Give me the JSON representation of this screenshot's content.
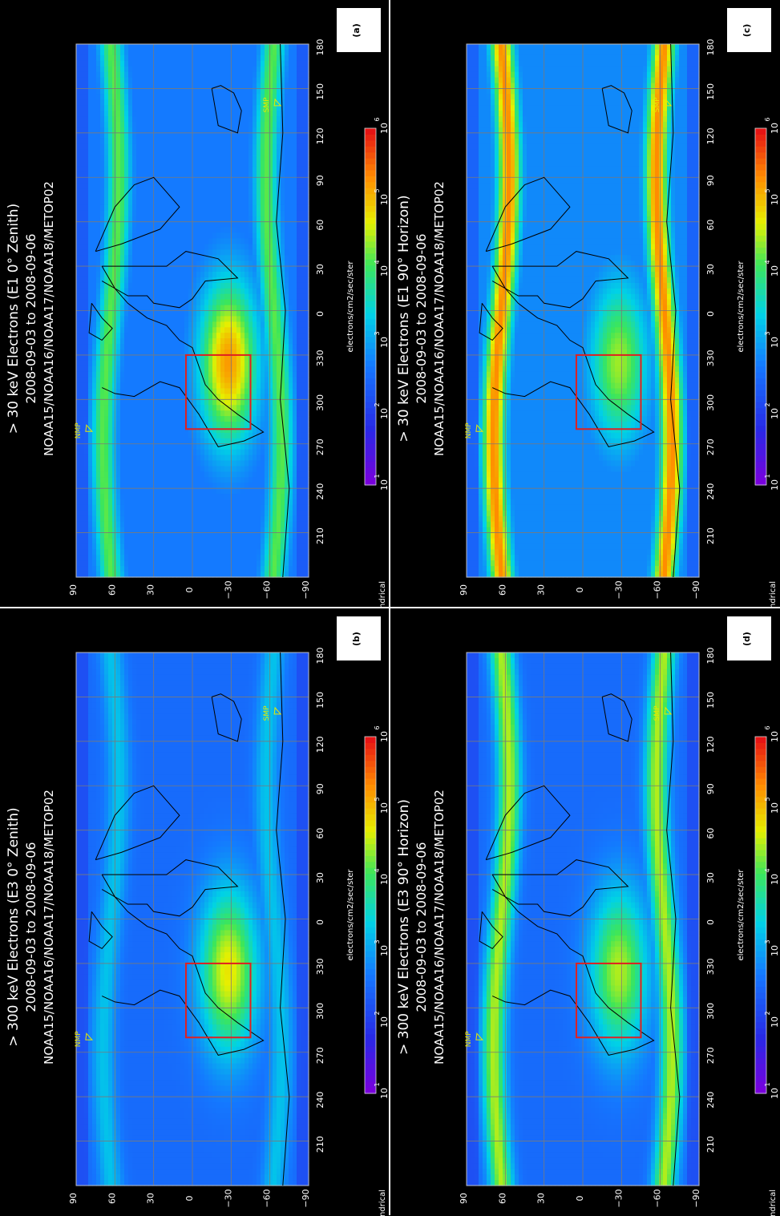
{
  "figure": {
    "colors": {
      "background": "#000000",
      "box": "#e02020",
      "grid": "#7a7a7a",
      "marker": "#e8e800"
    },
    "lat_ticks": [
      "90",
      "60",
      "30",
      "0",
      "−30",
      "−60",
      "−90"
    ],
    "lon_ticks": [
      "210",
      "240",
      "270",
      "300",
      "330",
      "0",
      "30",
      "60",
      "90",
      "120",
      "150",
      "180"
    ],
    "colorbar": {
      "unit": "electrons/cm2/sec/ster",
      "ticks": [
        "10",
        "10",
        "10",
        "10",
        "10",
        "10"
      ],
      "exps": [
        "1",
        "2",
        "3",
        "4",
        "5",
        "6"
      ]
    },
    "projection_label": "cylindrical",
    "markers": {
      "nmp": "NMP",
      "smp": "SMP"
    },
    "panels": [
      {
        "id": "a",
        "label": "(a)",
        "title1": "> 30 keV  Electrons (E1 0° Zenith)",
        "title2": "2008-09-03 to 2008-09-06",
        "title3": "NOAA15/NOAA16/NOAA17/NOAA18/METOP02",
        "intensity": 0.45,
        "belts": 0.55,
        "saa": 0.85
      },
      {
        "id": "c",
        "label": "(c)",
        "title1": "> 30 keV  Electrons (E1 90° Horizon)",
        "title2": "2008-09-03 to 2008-09-06",
        "title3": "NOAA15/NOAA16/NOAA17/NOAA18/METOP02",
        "intensity": 0.55,
        "belts": 0.92,
        "saa": 0.6
      },
      {
        "id": "b",
        "label": "(b)",
        "title1": "> 300 keV  Electrons (E3 0° Zenith)",
        "title2": "2008-09-03 to 2008-09-06",
        "title3": "NOAA15/NOAA16/NOAA17/NOAA18/METOP02",
        "intensity": 0.18,
        "belts": 0.25,
        "saa": 0.7
      },
      {
        "id": "d",
        "label": "(d)",
        "title1": "> 300 keV  Electrons (E3 90° Horizon)",
        "title2": "2008-09-03 to 2008-09-06",
        "title3": "NOAA15/NOAA16/NOAA17/NOAA18/METOP02",
        "intensity": 0.22,
        "belts": 0.65,
        "saa": 0.62
      }
    ]
  }
}
